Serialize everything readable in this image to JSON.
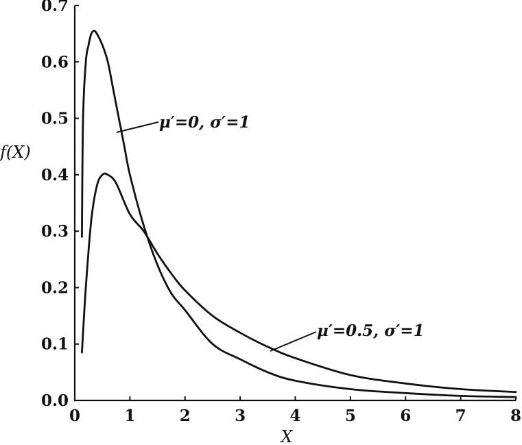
{
  "chart_data": {
    "type": "line",
    "title": "",
    "xlabel": "X",
    "ylabel": "f(X)",
    "xlim": [
      0,
      8
    ],
    "ylim": [
      0,
      0.7
    ],
    "x_ticks": [
      "0",
      "1",
      "2",
      "3",
      "4",
      "5",
      "6",
      "7",
      "8"
    ],
    "y_ticks": [
      "0.0",
      "0.1",
      "0.2",
      "0.3",
      "0.4",
      "0.5",
      "0.6",
      "0.7"
    ],
    "grid": false,
    "series": [
      {
        "name": "μ′=0, σ′=1",
        "mu": 0,
        "sigma": 1,
        "points": [
          [
            0.13,
            0.29
          ],
          [
            0.15,
            0.5
          ],
          [
            0.2,
            0.6
          ],
          [
            0.25,
            0.63
          ],
          [
            0.3,
            0.65
          ],
          [
            0.35,
            0.655
          ],
          [
            0.4,
            0.65
          ],
          [
            0.5,
            0.63
          ],
          [
            0.6,
            0.6
          ],
          [
            0.7,
            0.55
          ],
          [
            0.8,
            0.5
          ],
          [
            0.9,
            0.45
          ],
          [
            1.0,
            0.4
          ],
          [
            1.25,
            0.31
          ],
          [
            1.5,
            0.24
          ],
          [
            1.75,
            0.19
          ],
          [
            2.0,
            0.16
          ],
          [
            2.5,
            0.1
          ],
          [
            3.0,
            0.073
          ],
          [
            3.5,
            0.05
          ],
          [
            4.0,
            0.035
          ],
          [
            5.0,
            0.02
          ],
          [
            6.0,
            0.013
          ],
          [
            7.0,
            0.008
          ],
          [
            8.0,
            0.006
          ]
        ]
      },
      {
        "name": "μ′=0.5, σ′=1",
        "mu": 0.5,
        "sigma": 1,
        "points": [
          [
            0.13,
            0.085
          ],
          [
            0.2,
            0.2
          ],
          [
            0.3,
            0.32
          ],
          [
            0.4,
            0.38
          ],
          [
            0.5,
            0.4
          ],
          [
            0.6,
            0.4
          ],
          [
            0.75,
            0.385
          ],
          [
            1.0,
            0.33
          ],
          [
            1.25,
            0.3
          ],
          [
            1.5,
            0.26
          ],
          [
            1.75,
            0.225
          ],
          [
            2.0,
            0.195
          ],
          [
            2.5,
            0.15
          ],
          [
            3.0,
            0.12
          ],
          [
            3.5,
            0.095
          ],
          [
            4.0,
            0.075
          ],
          [
            5.0,
            0.045
          ],
          [
            6.0,
            0.03
          ],
          [
            7.0,
            0.02
          ],
          [
            8.0,
            0.015
          ]
        ]
      }
    ],
    "annotations": [
      {
        "text": "μ′=0, σ′=1",
        "series": 0
      },
      {
        "text": "μ′=0.5, σ′=1",
        "series": 1
      }
    ]
  }
}
